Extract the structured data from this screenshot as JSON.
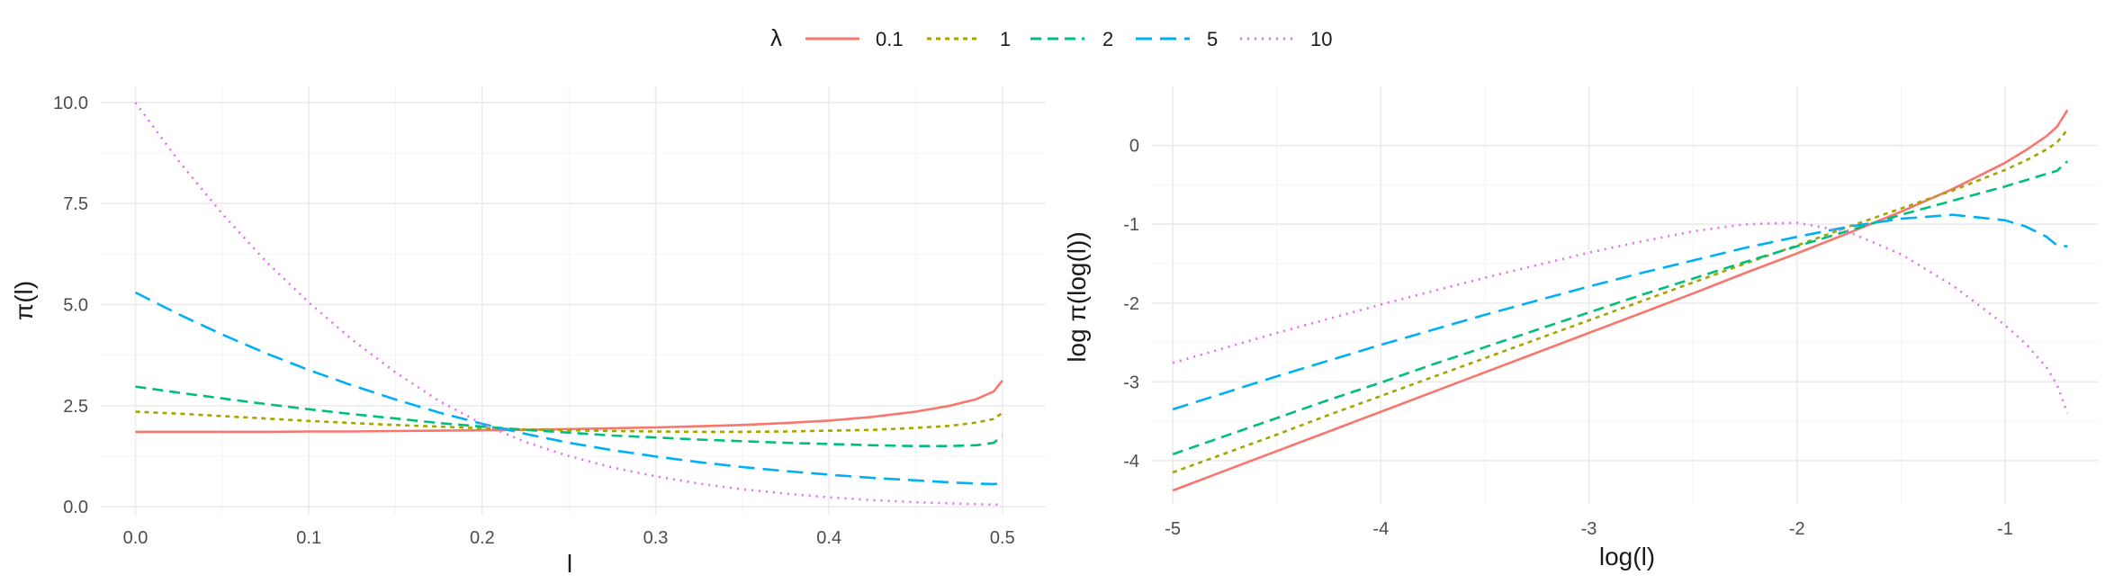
{
  "legend": {
    "title": "λ",
    "position": "top-center"
  },
  "series_styles": [
    {
      "lambda": 0.1,
      "label": "0.1",
      "color": "#F8766D",
      "dash": "solid"
    },
    {
      "lambda": 1,
      "label": "1",
      "color": "#A3A500",
      "dash": "dotted"
    },
    {
      "lambda": 2,
      "label": "2",
      "color": "#00BF7D",
      "dash": "dashed"
    },
    {
      "lambda": 5,
      "label": "5",
      "color": "#00B0F6",
      "dash": "longdash"
    },
    {
      "lambda": 10,
      "label": "10",
      "color": "#E76BF3",
      "dash": "dotted-fine"
    }
  ],
  "chart_data": [
    {
      "type": "line",
      "title": "",
      "xlabel": "l",
      "ylabel": "π(l)",
      "xlim": [
        -0.02,
        0.525
      ],
      "ylim": [
        -0.2,
        10.4
      ],
      "xticks": [
        0.0,
        0.1,
        0.2,
        0.3,
        0.4,
        0.5
      ],
      "xtick_labels": [
        "0.0",
        "0.1",
        "0.2",
        "0.3",
        "0.4",
        "0.5"
      ],
      "yticks": [
        0.0,
        2.5,
        5.0,
        7.5,
        10.0
      ],
      "ytick_labels": [
        "0.0",
        "2.5",
        "5.0",
        "7.5",
        "10.0"
      ],
      "grid": true,
      "x": [
        0.0,
        0.025,
        0.05,
        0.075,
        0.1,
        0.125,
        0.15,
        0.175,
        0.2,
        0.225,
        0.25,
        0.275,
        0.3,
        0.325,
        0.35,
        0.375,
        0.4,
        0.425,
        0.45,
        0.47,
        0.485,
        0.495,
        0.5
      ],
      "series": [
        {
          "name": "0.1",
          "values": [
            1.85,
            1.85,
            1.85,
            1.85,
            1.86,
            1.86,
            1.87,
            1.88,
            1.89,
            1.9,
            1.92,
            1.94,
            1.96,
            1.99,
            2.02,
            2.07,
            2.13,
            2.22,
            2.35,
            2.5,
            2.66,
            2.85,
            3.12
          ]
        },
        {
          "name": "1",
          "values": [
            2.35,
            2.3,
            2.24,
            2.18,
            2.12,
            2.07,
            2.02,
            1.98,
            1.94,
            1.91,
            1.89,
            1.87,
            1.86,
            1.85,
            1.85,
            1.86,
            1.88,
            1.9,
            1.95,
            2.0,
            2.08,
            2.17,
            2.32
          ]
        },
        {
          "name": "2",
          "values": [
            2.97,
            2.82,
            2.68,
            2.54,
            2.41,
            2.29,
            2.18,
            2.07,
            1.98,
            1.9,
            1.83,
            1.76,
            1.71,
            1.66,
            1.62,
            1.58,
            1.55,
            1.52,
            1.5,
            1.5,
            1.52,
            1.58,
            1.75
          ]
        },
        {
          "name": "5",
          "values": [
            5.3,
            4.76,
            4.26,
            3.8,
            3.38,
            3.0,
            2.65,
            2.33,
            2.05,
            1.8,
            1.58,
            1.4,
            1.24,
            1.1,
            0.98,
            0.88,
            0.79,
            0.71,
            0.65,
            0.6,
            0.57,
            0.56,
            0.57
          ]
        },
        {
          "name": "10",
          "values": [
            10.0,
            8.55,
            7.25,
            6.08,
            5.05,
            4.13,
            3.32,
            2.62,
            2.05,
            1.6,
            1.25,
            0.97,
            0.75,
            0.57,
            0.43,
            0.32,
            0.23,
            0.16,
            0.11,
            0.08,
            0.06,
            0.05,
            0.05
          ]
        }
      ]
    },
    {
      "type": "line",
      "title": "",
      "xlabel": "log(l)",
      "ylabel": "log π(log(l))",
      "xlim": [
        -5.1,
        -0.55
      ],
      "ylim": [
        -4.55,
        0.75
      ],
      "xticks": [
        -5,
        -4,
        -3,
        -2,
        -1
      ],
      "xtick_labels": [
        "-5",
        "-4",
        "-3",
        "-2",
        "-1"
      ],
      "yticks": [
        -4,
        -3,
        -2,
        -1,
        0
      ],
      "ytick_labels": [
        "-4",
        "-3",
        "-2",
        "-1",
        "0"
      ],
      "grid": true,
      "x": [
        -5.0,
        -4.75,
        -4.5,
        -4.25,
        -4.0,
        -3.75,
        -3.5,
        -3.25,
        -3.0,
        -2.75,
        -2.5,
        -2.25,
        -2.0,
        -1.75,
        -1.5,
        -1.25,
        -1.0,
        -0.9,
        -0.8,
        -0.75,
        -0.7
      ],
      "series": [
        {
          "name": "0.1",
          "values": [
            -4.38,
            -4.13,
            -3.88,
            -3.63,
            -3.38,
            -3.13,
            -2.88,
            -2.63,
            -2.38,
            -2.13,
            -1.88,
            -1.62,
            -1.37,
            -1.11,
            -0.84,
            -0.55,
            -0.22,
            -0.06,
            0.12,
            0.24,
            0.45
          ]
        },
        {
          "name": "1",
          "values": [
            -4.15,
            -3.91,
            -3.67,
            -3.42,
            -3.18,
            -2.94,
            -2.7,
            -2.46,
            -2.22,
            -1.98,
            -1.74,
            -1.5,
            -1.27,
            -1.03,
            -0.8,
            -0.57,
            -0.31,
            -0.19,
            -0.05,
            0.04,
            0.2
          ]
        },
        {
          "name": "2",
          "values": [
            -3.92,
            -3.69,
            -3.46,
            -3.23,
            -3.01,
            -2.78,
            -2.56,
            -2.34,
            -2.12,
            -1.9,
            -1.69,
            -1.48,
            -1.28,
            -1.08,
            -0.88,
            -0.7,
            -0.52,
            -0.44,
            -0.36,
            -0.32,
            -0.2
          ]
        },
        {
          "name": "5",
          "values": [
            -3.35,
            -3.14,
            -2.93,
            -2.73,
            -2.53,
            -2.34,
            -2.15,
            -1.97,
            -1.79,
            -1.62,
            -1.46,
            -1.3,
            -1.16,
            -1.03,
            -0.93,
            -0.88,
            -0.95,
            -1.03,
            -1.16,
            -1.27,
            -1.28
          ]
        },
        {
          "name": "10",
          "values": [
            -2.76,
            -2.57,
            -2.38,
            -2.2,
            -2.02,
            -1.85,
            -1.68,
            -1.52,
            -1.36,
            -1.22,
            -1.09,
            -1.0,
            -0.98,
            -1.1,
            -1.38,
            -1.78,
            -2.28,
            -2.52,
            -2.82,
            -3.04,
            -3.4
          ]
        }
      ]
    }
  ]
}
